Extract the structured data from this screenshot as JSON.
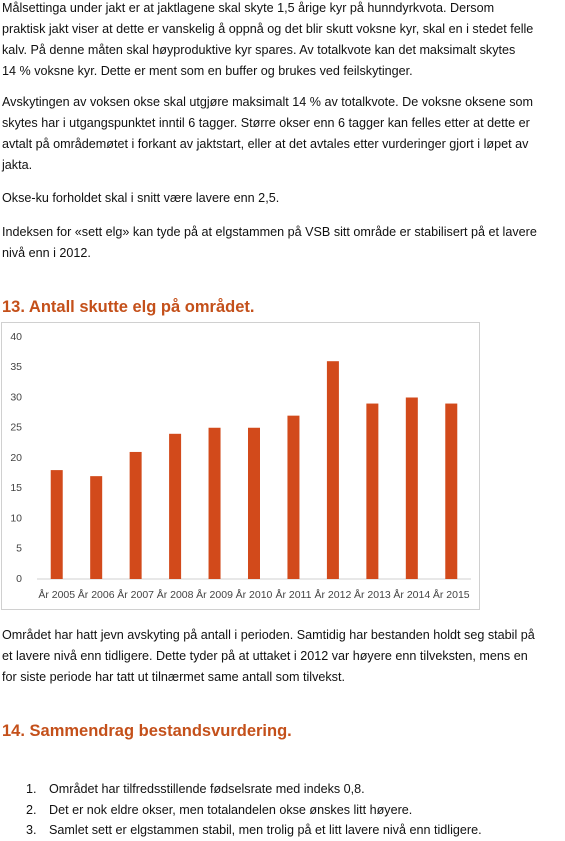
{
  "paragraphs_top": [
    [
      "Målsettinga under jakt er at jaktlagene skal skyte 1,5 årige kyr på hunndyrkvota. Dersom",
      "praktisk jakt viser at dette er vanskelig å oppnå og det blir skutt voksne kyr, skal en i stedet felle",
      "kalv. På denne måten skal høyproduktive kyr spares. Av totalkvote kan det maksimalt skytes",
      "14 % voksne kyr. Dette er ment som en buffer og brukes ved feilskytinger."
    ],
    [
      "Avskytingen av voksen okse skal utgjøre maksimalt 14 % av totalkvote. De voksne oksene som",
      "skytes har i utgangspunktet inntil 6 tagger. Større okser enn 6 tagger kan felles etter at dette er",
      "avtalt på områdemøtet i forkant av jaktstart, eller at det avtales etter vurderinger gjort i løpet av",
      "jakta."
    ],
    [
      "Okse-ku forholdet skal i snitt være lavere enn 2,5."
    ],
    [
      "Indeksen for «sett elg» kan tyde på at elgstammen på VSB sitt område er stabilisert på et lavere",
      "nivå enn i 2012."
    ]
  ],
  "heading_13": "13. Antall skutte elg på området.",
  "chart_data": {
    "type": "bar",
    "categories": [
      "År 2005",
      "År 2006",
      "År 2007",
      "År 2008",
      "År 2009",
      "År 2010",
      "År 2011",
      "År 2012",
      "År 2013",
      "År 2014",
      "År 2015"
    ],
    "values": [
      18,
      17,
      21,
      24,
      25,
      25,
      27,
      36,
      29,
      30,
      29
    ],
    "color": "#d24a1b",
    "ylim": [
      0,
      40
    ],
    "yticks": [
      0,
      5,
      10,
      15,
      20,
      25,
      30,
      35,
      40
    ],
    "grid": false
  },
  "paragraph_after_chart": [
    "Området har hatt jevn avskyting på antall i perioden. Samtidig har bestanden holdt seg stabil på",
    "et lavere nivå enn tidligere. Dette tyder på at uttaket i 2012 var høyere enn tilveksten, mens en",
    "for siste periode har tatt ut tilnærmet same antall som tilvekst."
  ],
  "heading_14": "14. Sammendrag bestandsvurdering.",
  "list": [
    {
      "marker": "1.",
      "text": "Området har tilfredsstillende fødselsrate med indeks 0,8."
    },
    {
      "marker": "2.",
      "text": "Det er nok eldre okser, men totalandelen okse ønskes litt høyere."
    },
    {
      "marker": "3.",
      "text": "Samlet sett er elgstammen stabil, men trolig på et litt lavere nivå enn tidligere."
    }
  ]
}
